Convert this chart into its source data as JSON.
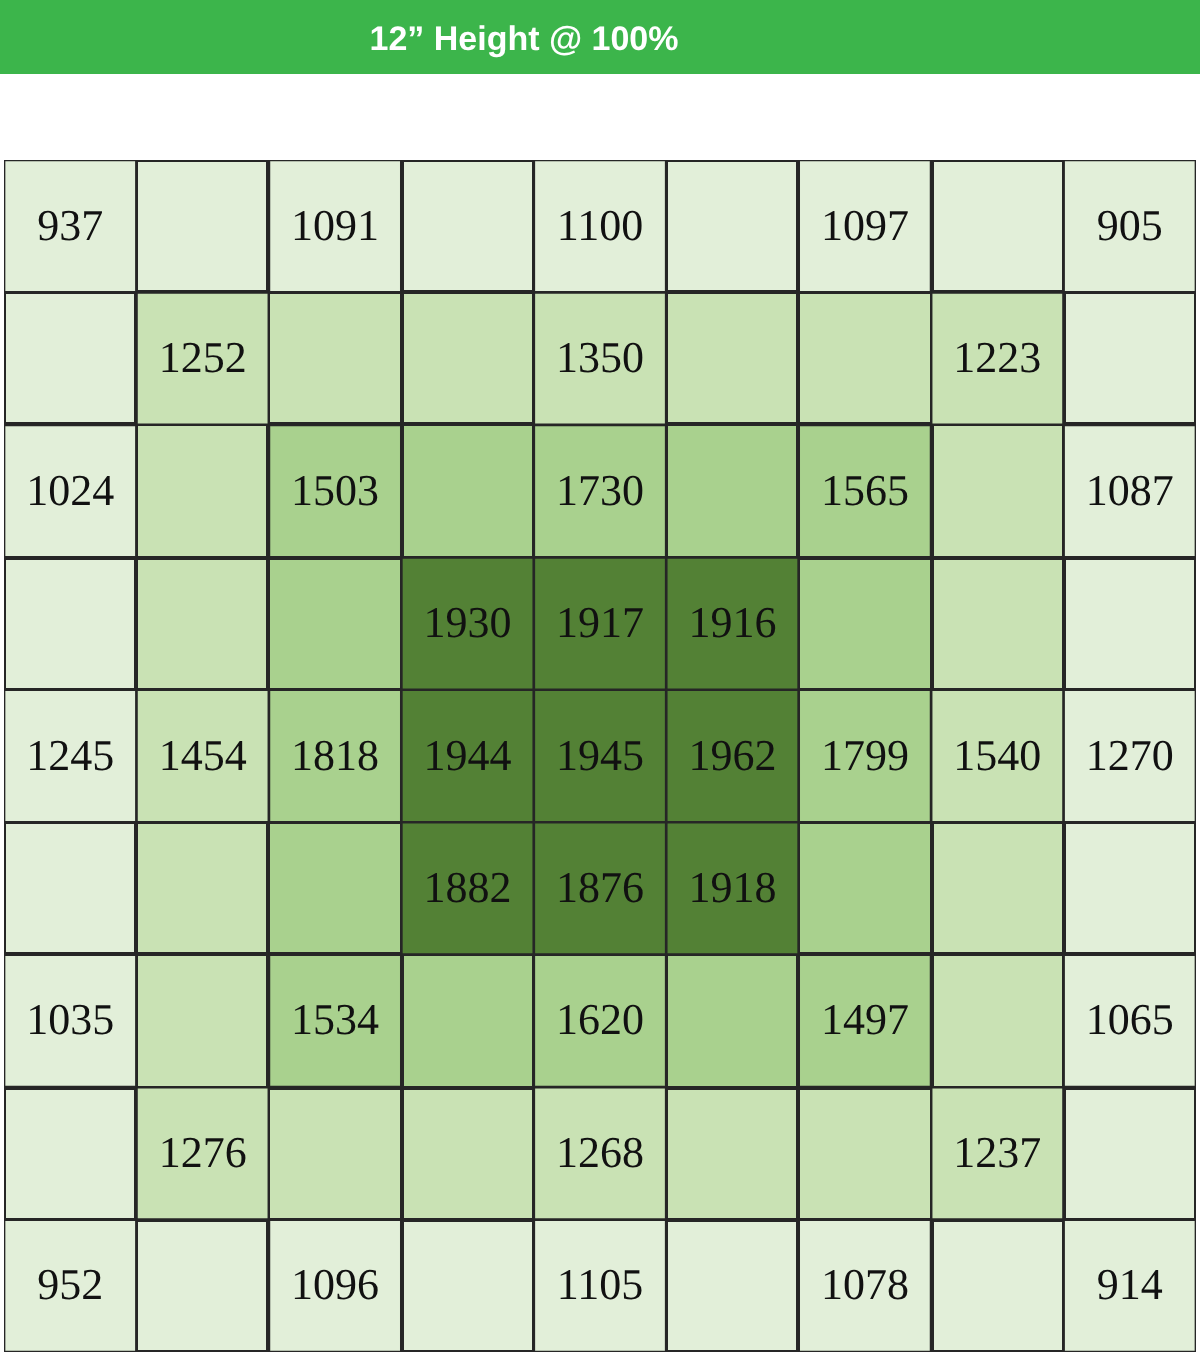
{
  "chart_data": {
    "type": "heatmap",
    "title": "12” Height @ 100%",
    "categories": [
      null,
      null,
      null,
      null,
      null,
      null,
      null,
      null,
      null
    ],
    "y_categories": [
      null,
      null,
      null,
      null,
      null,
      null,
      null,
      null,
      null
    ],
    "cells": [
      [
        937,
        null,
        1091,
        null,
        1100,
        null,
        1097,
        null,
        905
      ],
      [
        null,
        1252,
        null,
        null,
        1350,
        null,
        null,
        1223,
        null
      ],
      [
        1024,
        null,
        1503,
        null,
        1730,
        null,
        1565,
        null,
        1087
      ],
      [
        null,
        null,
        null,
        1930,
        1917,
        1916,
        null,
        null,
        null
      ],
      [
        1245,
        1454,
        1818,
        1944,
        1945,
        1962,
        1799,
        1540,
        1270
      ],
      [
        null,
        null,
        null,
        1882,
        1876,
        1918,
        null,
        null,
        null
      ],
      [
        1035,
        null,
        1534,
        null,
        1620,
        null,
        1497,
        null,
        1065
      ],
      [
        null,
        1276,
        null,
        null,
        1268,
        null,
        null,
        1237,
        null
      ],
      [
        952,
        null,
        1096,
        null,
        1105,
        null,
        1078,
        null,
        914
      ]
    ],
    "colors": [
      [
        "#e2efd9",
        "#e2efd9",
        "#e2efd9",
        "#e2efd9",
        "#e2efd9",
        "#e2efd9",
        "#e2efd9",
        "#e2efd9",
        "#e2efd9"
      ],
      [
        "#e2efd9",
        "#c9e2b4",
        "#c9e2b4",
        "#c9e2b4",
        "#c9e2b4",
        "#c9e2b4",
        "#c9e2b4",
        "#c9e2b4",
        "#e2efd9"
      ],
      [
        "#e2efd9",
        "#c9e2b4",
        "#a9d18e",
        "#a9d18e",
        "#a9d18e",
        "#a9d18e",
        "#a9d18e",
        "#c9e2b4",
        "#e2efd9"
      ],
      [
        "#e2efd9",
        "#c9e2b4",
        "#a9d18e",
        "#538135",
        "#538135",
        "#538135",
        "#a9d18e",
        "#c9e2b4",
        "#e2efd9"
      ],
      [
        "#e2efd9",
        "#c9e2b4",
        "#a9d18e",
        "#538135",
        "#538135",
        "#538135",
        "#a9d18e",
        "#c9e2b4",
        "#e2efd9"
      ],
      [
        "#e2efd9",
        "#c9e2b4",
        "#a9d18e",
        "#538135",
        "#538135",
        "#538135",
        "#a9d18e",
        "#c9e2b4",
        "#e2efd9"
      ],
      [
        "#e2efd9",
        "#c9e2b4",
        "#a9d18e",
        "#a9d18e",
        "#a9d18e",
        "#a9d18e",
        "#a9d18e",
        "#c9e2b4",
        "#e2efd9"
      ],
      [
        "#e2efd9",
        "#c9e2b4",
        "#c9e2b4",
        "#c9e2b4",
        "#c9e2b4",
        "#c9e2b4",
        "#c9e2b4",
        "#c9e2b4",
        "#e2efd9"
      ],
      [
        "#e2efd9",
        "#e2efd9",
        "#e2efd9",
        "#e2efd9",
        "#e2efd9",
        "#e2efd9",
        "#e2efd9",
        "#e2efd9",
        "#e2efd9"
      ]
    ],
    "data_labels": true,
    "tick_labels": false
  }
}
